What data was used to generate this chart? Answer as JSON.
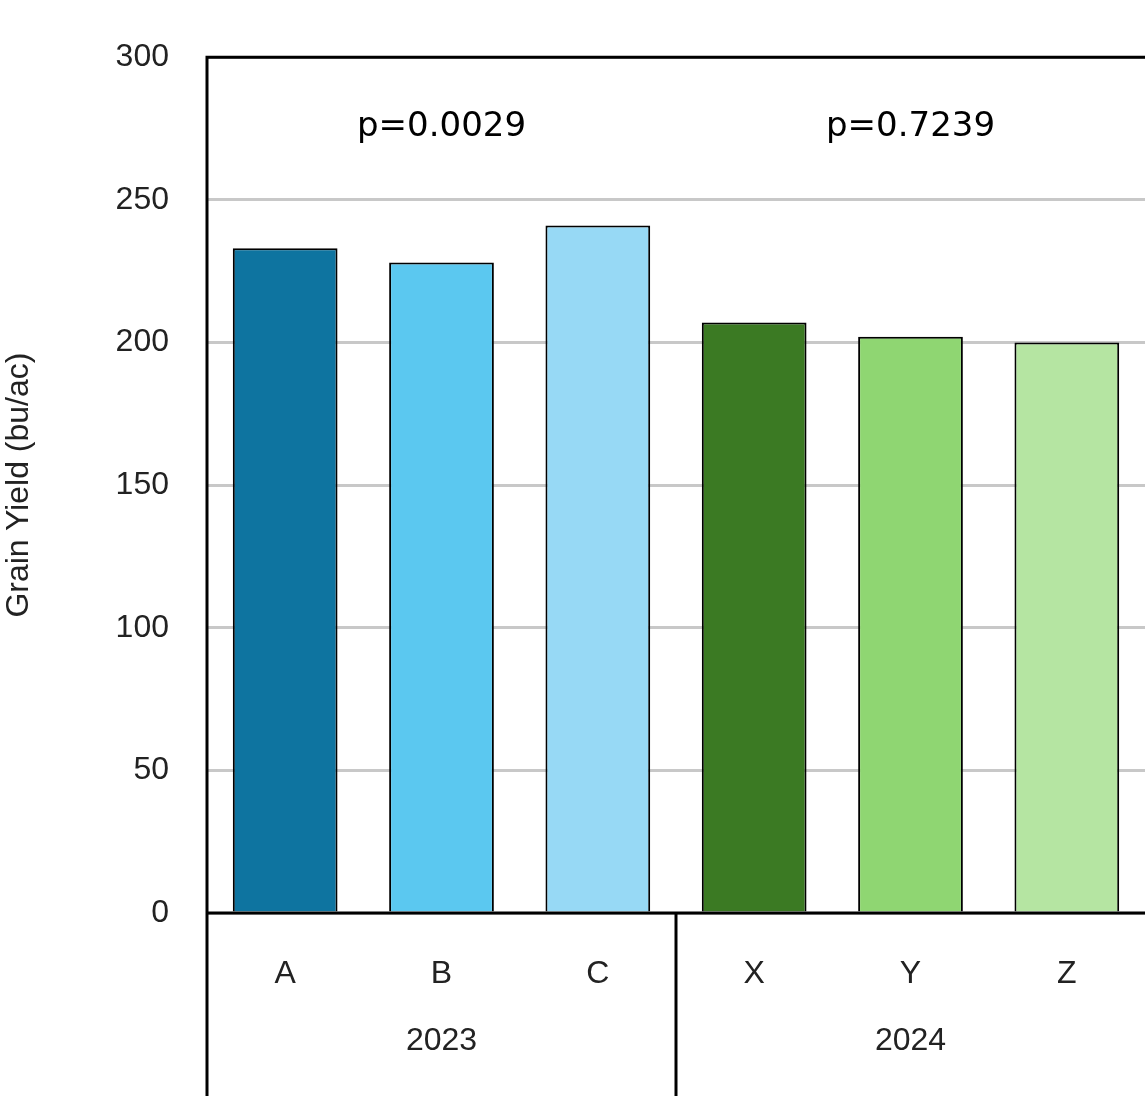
{
  "chart_data": {
    "type": "bar",
    "ylabel": "Grain Yield (bu/ac)",
    "categories": [
      "A",
      "B",
      "C",
      "X",
      "Y",
      "Z"
    ],
    "values": [
      233,
      228,
      241,
      207,
      202,
      200
    ],
    "colors": [
      "#0e74a0",
      "#5bc8f0",
      "#97d9f5",
      "#3b7a23",
      "#8fd672",
      "#b5e5a2"
    ],
    "ylim": [
      0,
      300
    ],
    "yticks": [
      0,
      50,
      100,
      150,
      200,
      250,
      300
    ],
    "grid": "y",
    "annotations": [
      "p=0.0029",
      "p=0.7239",
      "2023",
      "2024"
    ]
  }
}
